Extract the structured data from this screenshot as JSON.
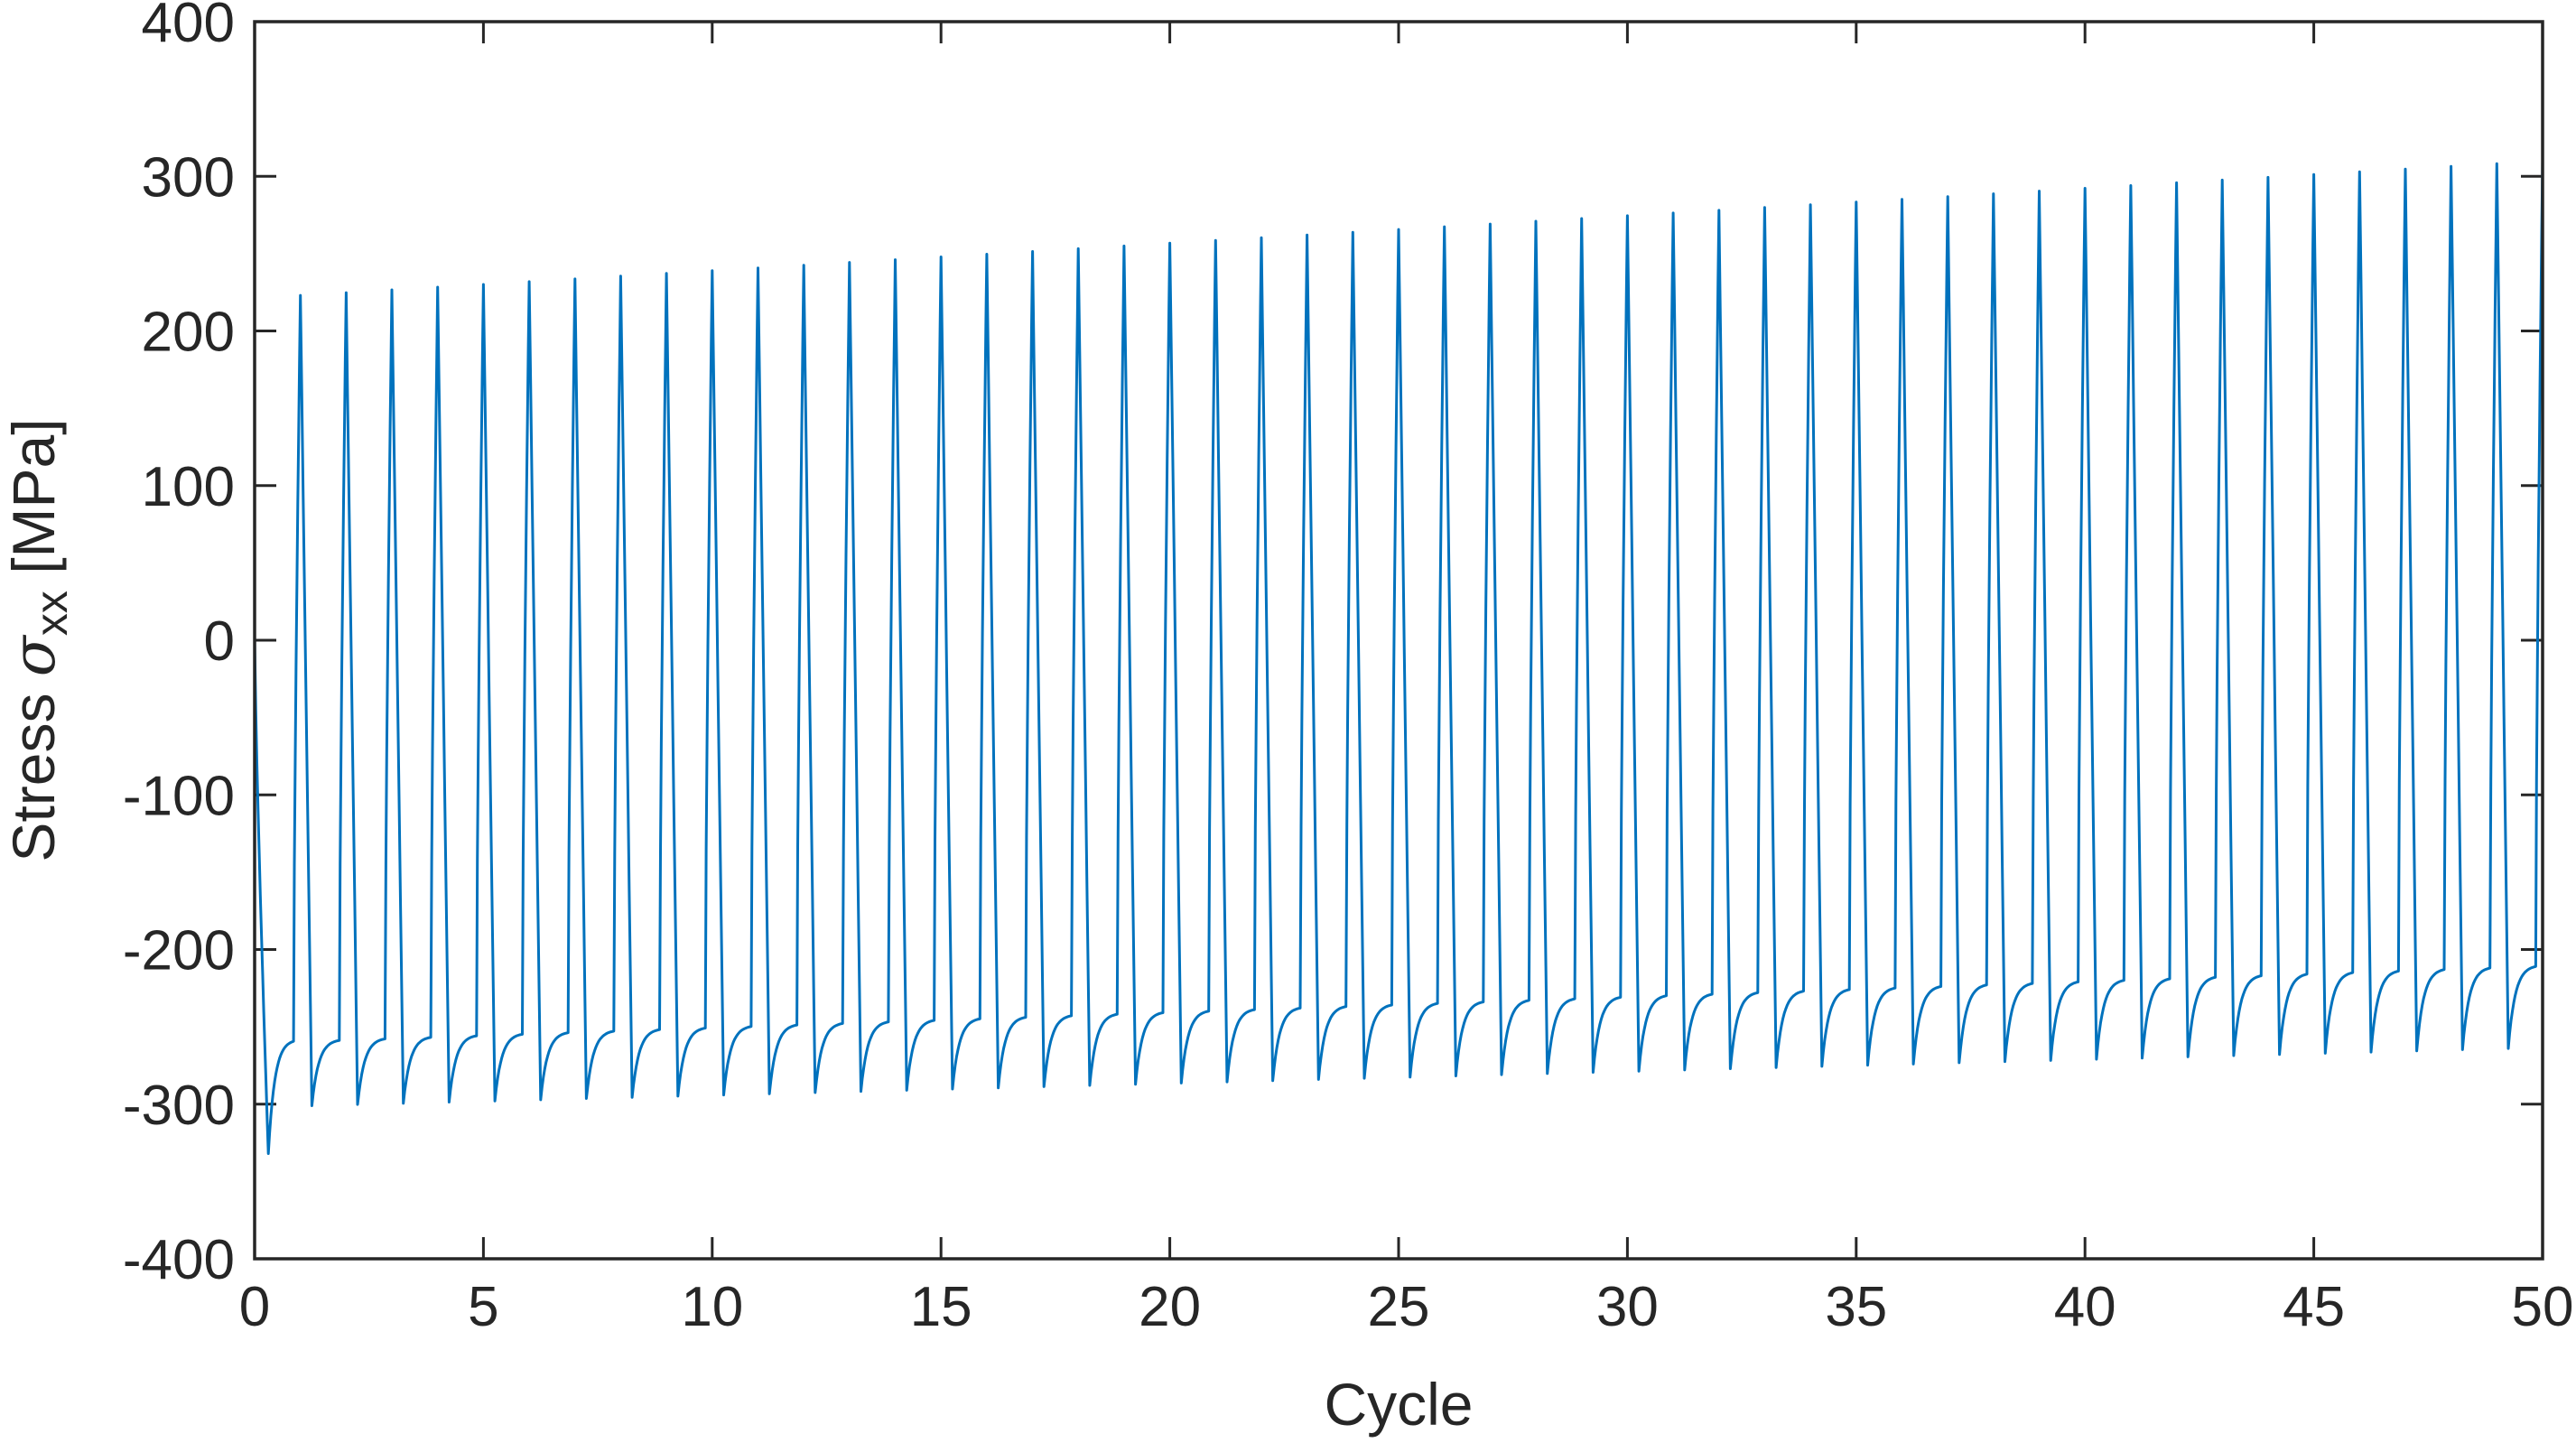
{
  "chart_data": {
    "type": "line",
    "xlabel": "Cycle",
    "ylabel": {
      "prefix": "Stress ",
      "symbol": "σ",
      "subscript": "xx",
      "suffix": " [MPa]"
    },
    "xlim": [
      0,
      50
    ],
    "ylim": [
      -400,
      400
    ],
    "x_ticks": [
      0,
      5,
      10,
      15,
      20,
      25,
      30,
      35,
      40,
      45,
      50
    ],
    "y_ticks": [
      -400,
      -300,
      -200,
      -100,
      0,
      100,
      200,
      300,
      400
    ],
    "grid": false,
    "line_color": "#0072BD",
    "series": [
      {
        "initial": {
          "start_stress": 0,
          "min_stress": -332,
          "min_cycle": 0.3
        },
        "cycles_range": [
          1,
          50
        ],
        "peak_stress_first": 223,
        "peak_stress_last": 310,
        "valley_stress_first": -301,
        "valley_stress_last": -264,
        "shoulder_stress_first": -258,
        "shoulder_stress_last": -210
      }
    ]
  }
}
